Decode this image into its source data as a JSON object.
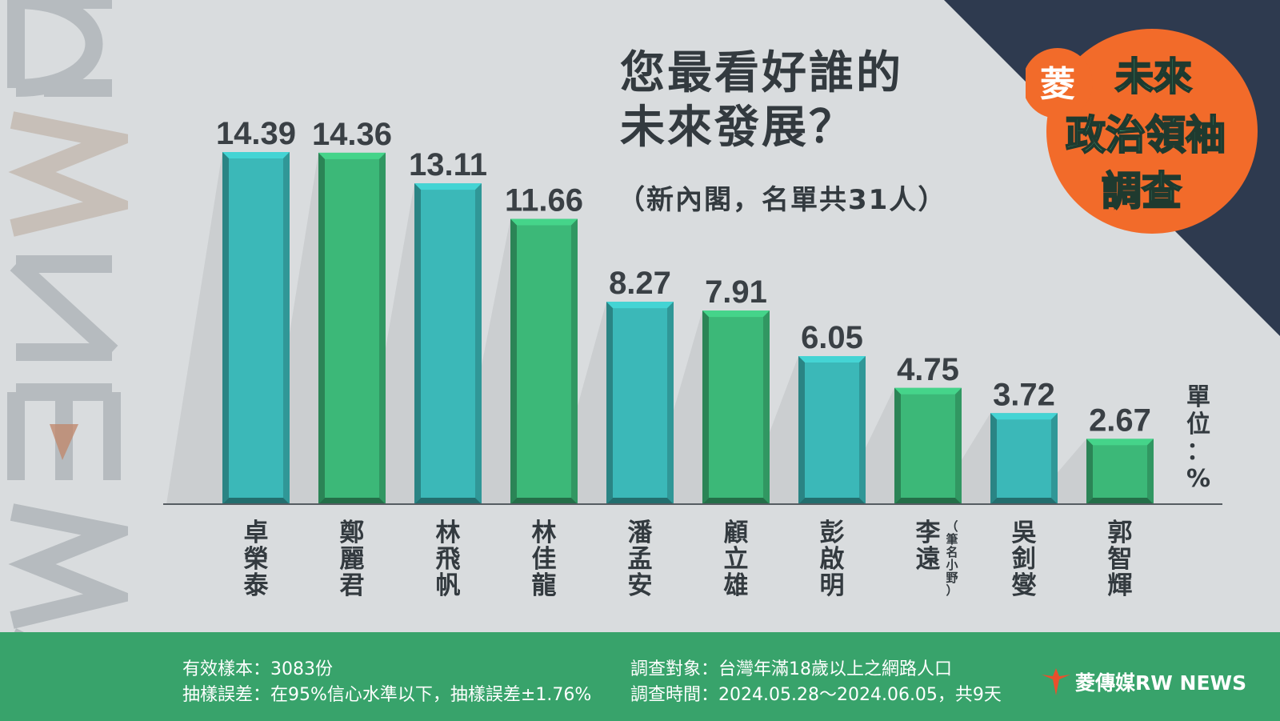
{
  "header": {
    "title_line1": "您最看好誰的",
    "title_line2": "未來發展？",
    "subtitle": "（新內閣，名單共31人）"
  },
  "badge": {
    "char": "菱",
    "line1": "未來",
    "line2": "政治領袖",
    "line3": "調查"
  },
  "watermark": {
    "text": "RW NEWS"
  },
  "chart_data": {
    "type": "bar",
    "title": "您最看好誰的未來發展？",
    "subtitle": "（新內閣，名單共31人）",
    "unit_label": "單位：%",
    "categories": [
      "卓榮泰",
      "鄭麗君",
      "林飛帆",
      "林佳龍",
      "潘孟安",
      "顧立雄",
      "彭啟明",
      "李遠",
      "吳釗燮",
      "郭智輝"
    ],
    "category_notes": [
      "",
      "",
      "",
      "",
      "",
      "",
      "",
      "（筆名小野）",
      "",
      ""
    ],
    "values": [
      14.39,
      14.36,
      13.11,
      11.66,
      8.27,
      7.91,
      6.05,
      4.75,
      3.72,
      2.67
    ],
    "value_labels": [
      "14.39",
      "14.36",
      "13.11",
      "11.66",
      "8.27",
      "7.91",
      "6.05",
      "4.75",
      "3.72",
      "2.67"
    ],
    "bar_colors": [
      "#3bb8b8",
      "#3cb878",
      "#3bb8b8",
      "#3cb878",
      "#3bb8b8",
      "#3cb878",
      "#3bb8b8",
      "#3cb878",
      "#3bb8b8",
      "#3cb878"
    ],
    "ylim": [
      0,
      15
    ],
    "grid": false,
    "legend": "none"
  },
  "footer": {
    "sample": "有效樣本：3083份",
    "error": "抽樣誤差：在95%信心水準以下，抽樣誤差±1.76%",
    "target": "調查對象：台灣年滿18歲以上之網路人口",
    "period": "調查時間：2024.05.28～2024.06.05，共9天",
    "brand": "菱傳媒RW NEWS"
  },
  "colors": {
    "background": "#d9dcde",
    "navy": "#2e3a4f",
    "teal": "#3bb8b8",
    "green": "#3cb878",
    "footer": "#38a36b",
    "badge_orange": "#f26b2a",
    "text": "#333a3f"
  }
}
